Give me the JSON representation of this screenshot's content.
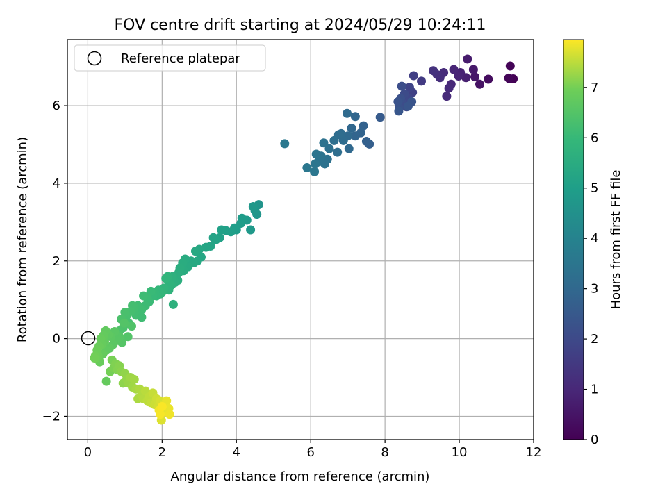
{
  "chart_data": {
    "type": "scatter",
    "title": "FOV centre drift starting at 2024/05/29 10:24:11",
    "xlabel": "Angular distance from reference (arcmin)",
    "ylabel": "Rotation from reference (arcmin)",
    "xlim": [
      -0.55,
      12.0
    ],
    "ylim": [
      -2.6,
      7.7
    ],
    "xticks": [
      0,
      2,
      4,
      6,
      8,
      10,
      12
    ],
    "xtick_labels": [
      "0",
      "2",
      "4",
      "6",
      "8",
      "10",
      "12"
    ],
    "yticks": [
      -2,
      0,
      2,
      4,
      6
    ],
    "ytick_labels": [
      "−2",
      "0",
      "2",
      "4",
      "6"
    ],
    "grid": true,
    "legend": {
      "position": "top-left",
      "entries": [
        "Reference platepar"
      ]
    },
    "reference_point": {
      "x": 0,
      "y": 0,
      "label": "Reference platepar"
    },
    "colorbar": {
      "label": "Hours from first FF file",
      "colormap": "viridis",
      "range": [
        0,
        7.95
      ],
      "ticks": [
        0,
        1,
        2,
        3,
        4,
        5,
        6,
        7
      ],
      "tick_labels": [
        "0",
        "1",
        "2",
        "3",
        "4",
        "5",
        "6",
        "7"
      ]
    },
    "points": [
      [
        11.45,
        6.69,
        0.02
      ],
      [
        11.35,
        6.69,
        0.05
      ],
      [
        11.37,
        7.02,
        0.08
      ],
      [
        11.33,
        6.71,
        0.12
      ],
      [
        10.78,
        6.68,
        0.3
      ],
      [
        10.55,
        6.55,
        0.45
      ],
      [
        10.42,
        6.74,
        0.55
      ],
      [
        10.38,
        6.93,
        0.62
      ],
      [
        10.22,
        7.2,
        0.7
      ],
      [
        10.18,
        6.72,
        0.78
      ],
      [
        10.03,
        6.85,
        0.85
      ],
      [
        9.98,
        6.76,
        0.9
      ],
      [
        9.85,
        6.93,
        0.95
      ],
      [
        9.78,
        6.55,
        1.0
      ],
      [
        9.72,
        6.45,
        1.05
      ],
      [
        9.66,
        6.24,
        1.08
      ],
      [
        9.58,
        6.85,
        1.12
      ],
      [
        9.48,
        6.72,
        1.18
      ],
      [
        9.4,
        6.8,
        1.22
      ],
      [
        9.3,
        6.9,
        1.3
      ],
      [
        8.98,
        6.63,
        1.55
      ],
      [
        8.77,
        6.77,
        1.7
      ],
      [
        8.74,
        6.34,
        1.75
      ],
      [
        8.7,
        6.08,
        1.8
      ],
      [
        8.66,
        6.47,
        1.85
      ],
      [
        8.62,
        6.2,
        1.9
      ],
      [
        8.58,
        5.97,
        1.95
      ],
      [
        8.55,
        6.12,
        2.0
      ],
      [
        8.52,
        6.3,
        2.05
      ],
      [
        8.48,
        6.05,
        2.1
      ],
      [
        8.45,
        6.5,
        2.15
      ],
      [
        8.42,
        6.18,
        2.2
      ],
      [
        8.38,
        5.95,
        2.25
      ],
      [
        8.35,
        6.1,
        2.3
      ],
      [
        8.72,
        6.1,
        2.33
      ],
      [
        8.62,
        5.98,
        2.38
      ],
      [
        8.37,
        5.86,
        2.42
      ],
      [
        7.87,
        5.7,
        2.55
      ],
      [
        7.58,
        5.01,
        2.7
      ],
      [
        7.5,
        5.08,
        2.75
      ],
      [
        7.42,
        5.48,
        2.8
      ],
      [
        7.35,
        5.3,
        2.85
      ],
      [
        7.2,
        5.22,
        2.9
      ],
      [
        7.2,
        5.72,
        2.95
      ],
      [
        7.1,
        5.42,
        3.0
      ],
      [
        7.03,
        4.89,
        3.02
      ],
      [
        7.0,
        5.22,
        3.05
      ],
      [
        6.98,
        5.8,
        3.08
      ],
      [
        6.88,
        5.1,
        3.12
      ],
      [
        6.82,
        5.28,
        3.15
      ],
      [
        6.75,
        5.25,
        3.18
      ],
      [
        6.72,
        4.8,
        3.2
      ],
      [
        6.63,
        5.1,
        3.25
      ],
      [
        6.5,
        4.89,
        3.3
      ],
      [
        6.45,
        4.62,
        3.32
      ],
      [
        6.38,
        4.5,
        3.35
      ],
      [
        6.35,
        5.04,
        3.38
      ],
      [
        6.28,
        4.7,
        3.4
      ],
      [
        6.2,
        4.55,
        3.42
      ],
      [
        6.15,
        4.75,
        3.45
      ],
      [
        6.12,
        4.5,
        3.47
      ],
      [
        6.1,
        4.3,
        3.5
      ],
      [
        5.9,
        4.4,
        3.55
      ],
      [
        5.3,
        5.02,
        3.6
      ],
      [
        4.6,
        3.45,
        4.6
      ],
      [
        4.55,
        3.2,
        4.65
      ],
      [
        4.5,
        3.3,
        4.7
      ],
      [
        4.45,
        3.4,
        4.75
      ],
      [
        4.38,
        2.8,
        4.8
      ],
      [
        4.28,
        3.05,
        4.85
      ],
      [
        4.15,
        3.1,
        4.9
      ],
      [
        4.12,
        2.97,
        4.92
      ],
      [
        4.0,
        2.8,
        4.95
      ],
      [
        3.95,
        2.85,
        4.98
      ],
      [
        3.85,
        2.75,
        5.0
      ],
      [
        3.72,
        2.78,
        5.05
      ],
      [
        3.6,
        2.8,
        5.08
      ],
      [
        3.55,
        2.6,
        5.1
      ],
      [
        3.45,
        2.55,
        5.15
      ],
      [
        3.38,
        2.6,
        5.18
      ],
      [
        3.3,
        2.38,
        5.22
      ],
      [
        3.18,
        2.35,
        5.25
      ],
      [
        3.05,
        2.1,
        5.3
      ],
      [
        3.0,
        2.3,
        5.32
      ],
      [
        2.95,
        2.0,
        5.35
      ],
      [
        2.9,
        2.25,
        5.38
      ],
      [
        2.85,
        1.95,
        5.4
      ],
      [
        2.78,
        2.0,
        5.42
      ],
      [
        2.7,
        1.85,
        5.45
      ],
      [
        2.62,
        2.05,
        5.48
      ],
      [
        2.58,
        1.75,
        5.5
      ],
      [
        2.55,
        1.95,
        5.53
      ],
      [
        2.48,
        1.82,
        5.56
      ],
      [
        2.45,
        1.7,
        5.58
      ],
      [
        2.42,
        1.5,
        5.6
      ],
      [
        2.35,
        1.45,
        5.65
      ],
      [
        2.28,
        1.6,
        5.68
      ],
      [
        2.25,
        1.38,
        5.72
      ],
      [
        2.2,
        1.42,
        5.75
      ],
      [
        2.18,
        1.25,
        5.78
      ],
      [
        2.15,
        1.6,
        5.8
      ],
      [
        2.1,
        1.55,
        5.83
      ],
      [
        2.05,
        1.3,
        5.85
      ],
      [
        2.0,
        1.2,
        5.88
      ],
      [
        1.95,
        1.15,
        5.9
      ],
      [
        1.9,
        1.25,
        5.93
      ],
      [
        1.85,
        1.1,
        5.96
      ],
      [
        1.8,
        1.2,
        5.98
      ],
      [
        1.75,
        1.1,
        6.0
      ],
      [
        1.7,
        1.22,
        6.03
      ],
      [
        1.65,
        0.95,
        6.06
      ],
      [
        1.6,
        1.05,
        6.08
      ],
      [
        1.55,
        0.85,
        6.1
      ],
      [
        1.5,
        1.1,
        6.12
      ],
      [
        1.45,
        0.75,
        6.14
      ],
      [
        1.4,
        0.78,
        6.16
      ],
      [
        1.35,
        0.85,
        6.18
      ],
      [
        1.3,
        0.6,
        6.2
      ],
      [
        1.25,
        0.8,
        6.22
      ],
      [
        1.2,
        0.85,
        6.24
      ],
      [
        1.15,
        0.7,
        6.26
      ],
      [
        1.1,
        0.4,
        6.28
      ],
      [
        1.05,
        0.6,
        6.3
      ],
      [
        1.0,
        0.68,
        6.32
      ],
      [
        0.95,
        0.28,
        6.35
      ],
      [
        0.9,
        0.5,
        6.37
      ],
      [
        0.85,
        0.2,
        6.4
      ],
      [
        0.8,
        0.15,
        6.42
      ],
      [
        2.3,
        0.88,
        5.7
      ],
      [
        1.45,
        0.55,
        6.15
      ],
      [
        1.18,
        0.32,
        6.45
      ],
      [
        1.08,
        0.05,
        6.48
      ],
      [
        0.98,
        0.4,
        6.5
      ],
      [
        0.92,
        -0.1,
        6.52
      ],
      [
        0.85,
        0.05,
        6.55
      ],
      [
        0.78,
        -0.05,
        6.58
      ],
      [
        0.72,
        0.18,
        6.6
      ],
      [
        0.68,
        -0.15,
        6.62
      ],
      [
        0.62,
        0.05,
        6.65
      ],
      [
        0.58,
        -0.25,
        6.68
      ],
      [
        0.55,
        0.1,
        6.7
      ],
      [
        0.5,
        -0.3,
        6.72
      ],
      [
        0.48,
        0.2,
        6.74
      ],
      [
        0.45,
        -0.08,
        6.76
      ],
      [
        0.42,
        0.08,
        6.78
      ],
      [
        0.4,
        -0.4,
        6.8
      ],
      [
        0.38,
        -0.15,
        6.82
      ],
      [
        0.35,
        0.0,
        6.84
      ],
      [
        0.32,
        -0.6,
        6.86
      ],
      [
        0.3,
        -0.2,
        6.88
      ],
      [
        0.28,
        -0.45,
        6.9
      ],
      [
        0.25,
        -0.3,
        6.92
      ],
      [
        0.22,
        -0.5,
        6.94
      ],
      [
        0.2,
        -0.45,
        6.96
      ],
      [
        0.18,
        -0.5,
        6.98
      ],
      [
        0.5,
        -1.1,
        6.8
      ],
      [
        0.6,
        -0.85,
        7.0
      ],
      [
        0.65,
        -0.55,
        7.02
      ],
      [
        0.7,
        -0.75,
        7.05
      ],
      [
        0.75,
        -0.65,
        7.08
      ],
      [
        0.8,
        -0.8,
        7.1
      ],
      [
        0.85,
        -0.7,
        7.12
      ],
      [
        0.9,
        -0.85,
        7.15
      ],
      [
        0.95,
        -1.15,
        7.18
      ],
      [
        1.0,
        -0.9,
        7.2
      ],
      [
        1.05,
        -1.05,
        7.22
      ],
      [
        1.1,
        -1.15,
        7.25
      ],
      [
        1.15,
        -1.0,
        7.28
      ],
      [
        1.2,
        -1.25,
        7.3
      ],
      [
        1.25,
        -1.05,
        7.32
      ],
      [
        1.3,
        -1.3,
        7.35
      ],
      [
        1.35,
        -1.55,
        7.38
      ],
      [
        1.4,
        -1.3,
        7.4
      ],
      [
        1.45,
        -1.45,
        7.42
      ],
      [
        1.5,
        -1.55,
        7.45
      ],
      [
        1.55,
        -1.35,
        7.48
      ],
      [
        1.6,
        -1.6,
        7.5
      ],
      [
        1.65,
        -1.5,
        7.52
      ],
      [
        1.7,
        -1.65,
        7.55
      ],
      [
        1.75,
        -1.4,
        7.57
      ],
      [
        1.8,
        -1.7,
        7.6
      ],
      [
        1.85,
        -1.55,
        7.62
      ],
      [
        1.9,
        -1.75,
        7.65
      ],
      [
        1.95,
        -1.6,
        7.68
      ],
      [
        2.0,
        -1.9,
        7.7
      ],
      [
        1.98,
        -2.1,
        7.72
      ],
      [
        2.05,
        -1.7,
        7.75
      ],
      [
        2.1,
        -1.85,
        7.78
      ],
      [
        2.12,
        -1.6,
        7.8
      ],
      [
        2.18,
        -1.8,
        7.82
      ],
      [
        2.2,
        -1.95,
        7.85
      ],
      [
        1.92,
        -1.85,
        7.88
      ],
      [
        1.95,
        -1.95,
        7.9
      ],
      [
        2.0,
        -1.75,
        7.92
      ]
    ]
  }
}
